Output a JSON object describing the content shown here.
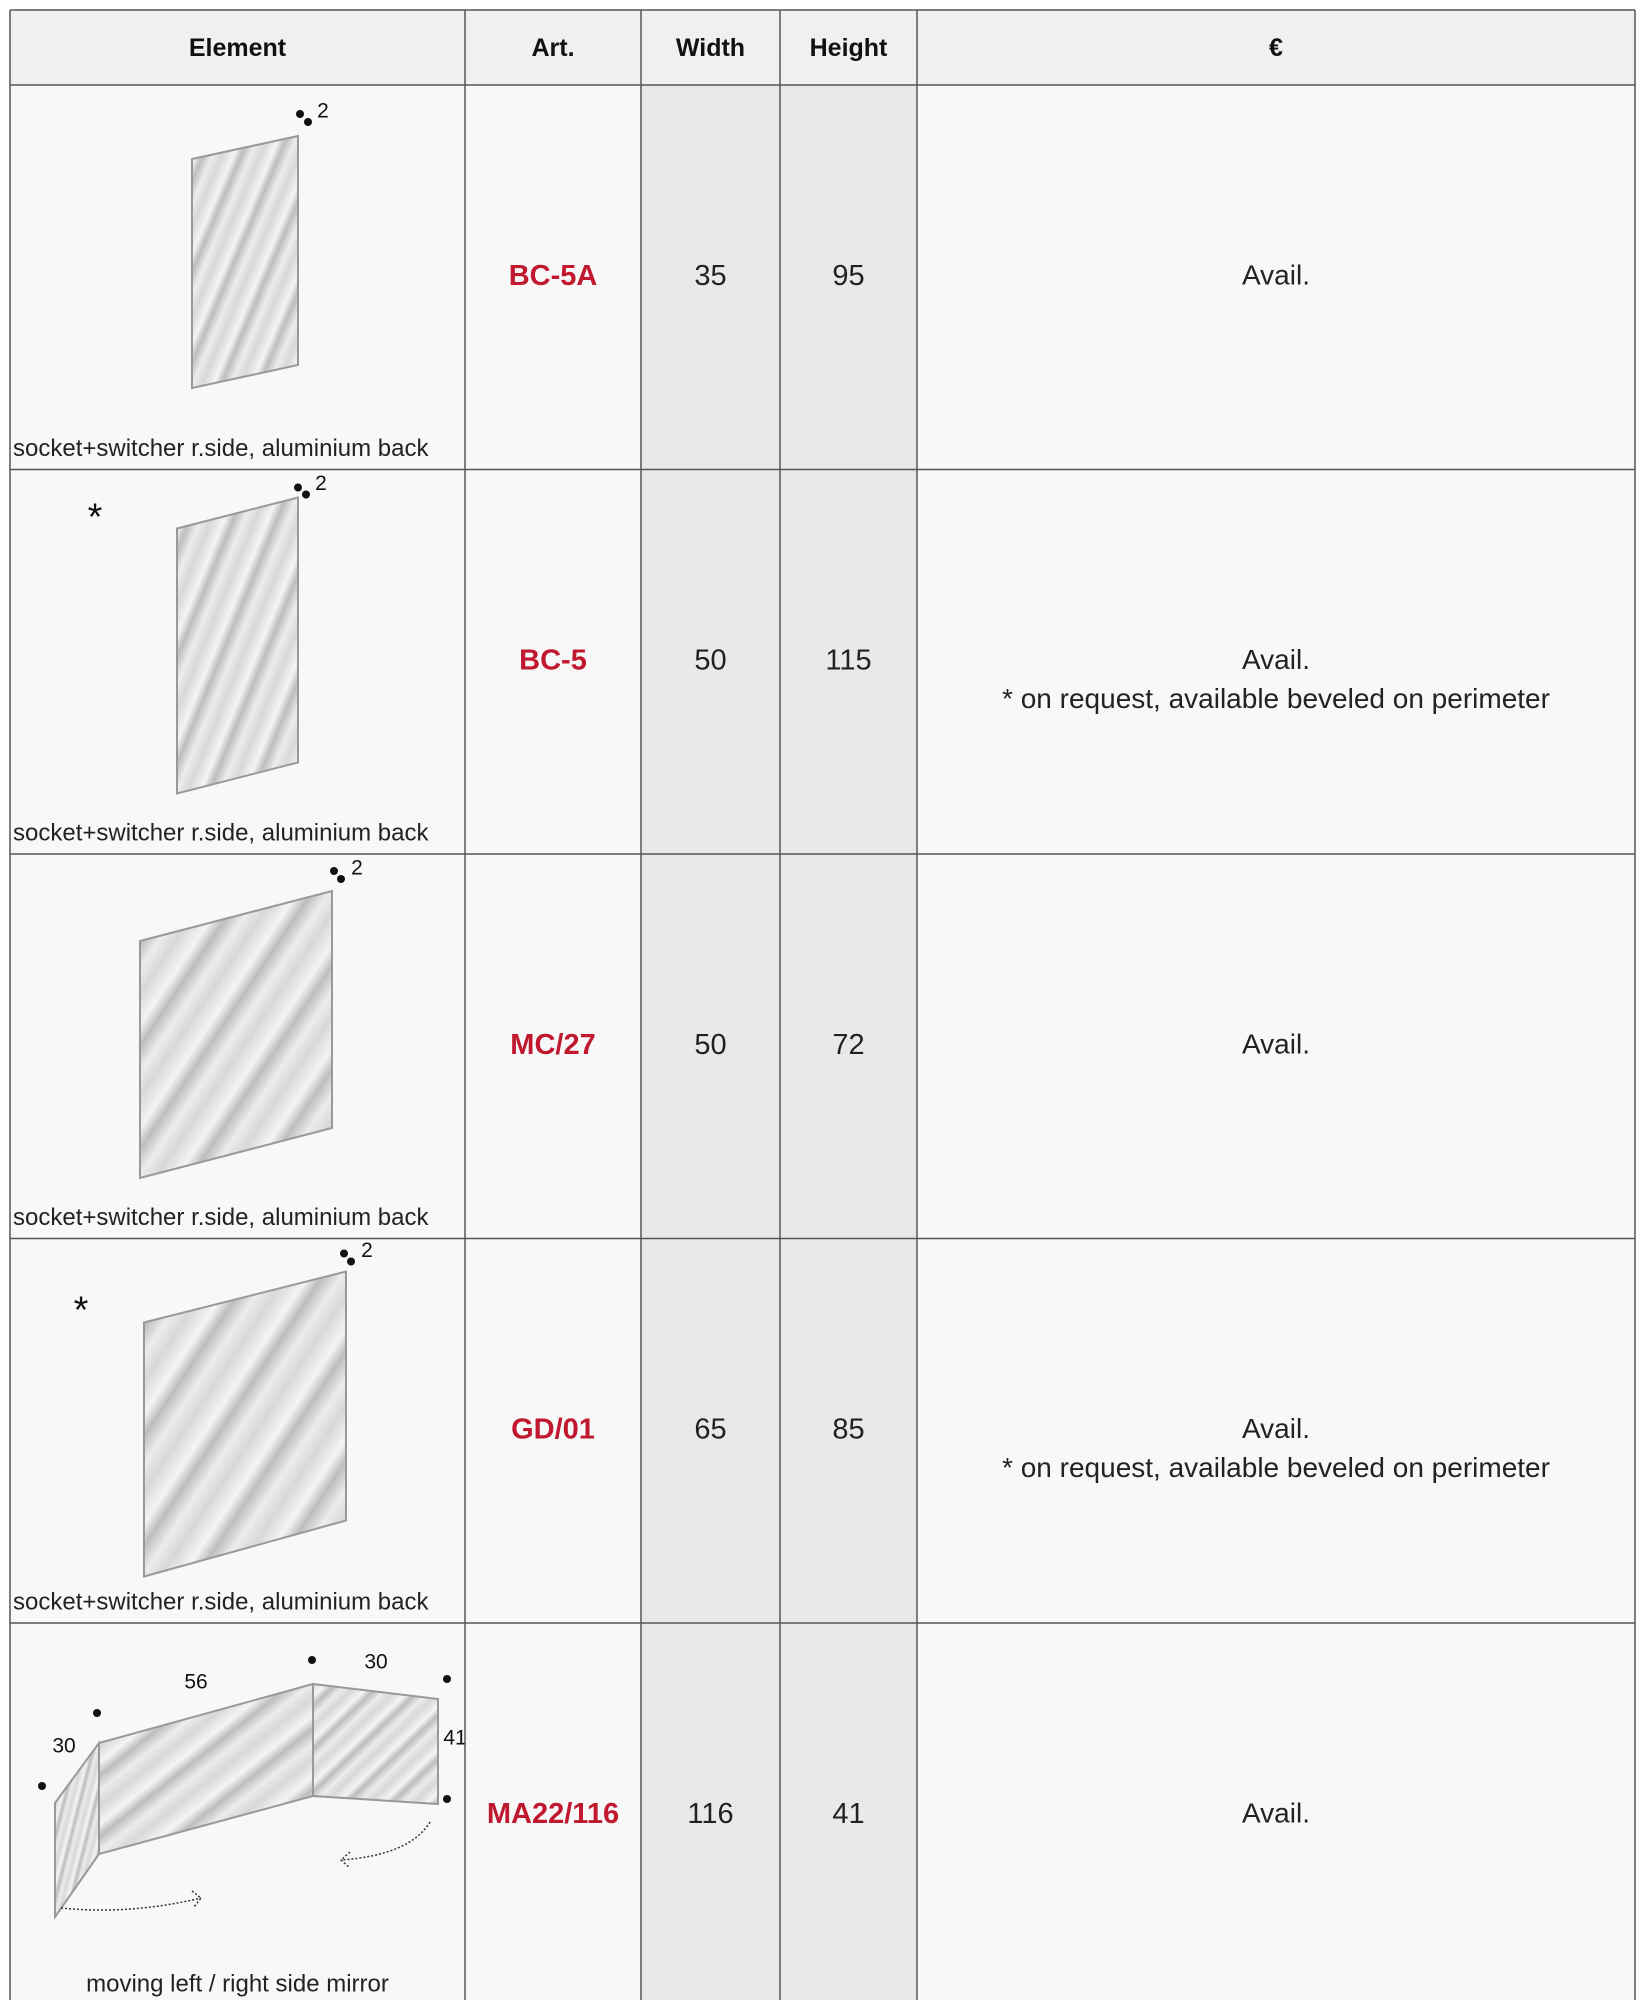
{
  "table": {
    "headers": [
      "Element",
      "Art.",
      "Width",
      "Height",
      "€"
    ],
    "rows": [
      {
        "labels": [
          "2"
        ],
        "caption": "socket+switcher r.side, aluminium back",
        "art": "BC-5A",
        "width": 35,
        "height": 95,
        "price": [
          "Avail."
        ]
      },
      {
        "labels": [
          "2",
          "*"
        ],
        "caption": "socket+switcher r.side, aluminium back",
        "art": "BC-5",
        "width": 50,
        "height": 115,
        "price": [
          "Avail.",
          "* on request, available beveled on perimeter"
        ]
      },
      {
        "labels": [
          "2"
        ],
        "caption": "socket+switcher r.side, aluminium back",
        "art": "MC/27",
        "width": 50,
        "height": 72,
        "price": [
          "Avail."
        ]
      },
      {
        "labels": [
          "2",
          "*"
        ],
        "caption": "socket+switcher r.side, aluminium back",
        "art": "GD/01",
        "width": 65,
        "height": 85,
        "price": [
          "Avail.",
          "* on request, available beveled on perimeter"
        ]
      },
      {
        "labels": [
          "56",
          "30",
          "30",
          "41"
        ],
        "caption": "moving left / right side mirror",
        "art": "MA22/116",
        "width": 116,
        "height": 41,
        "price": [
          "Avail."
        ]
      }
    ]
  }
}
